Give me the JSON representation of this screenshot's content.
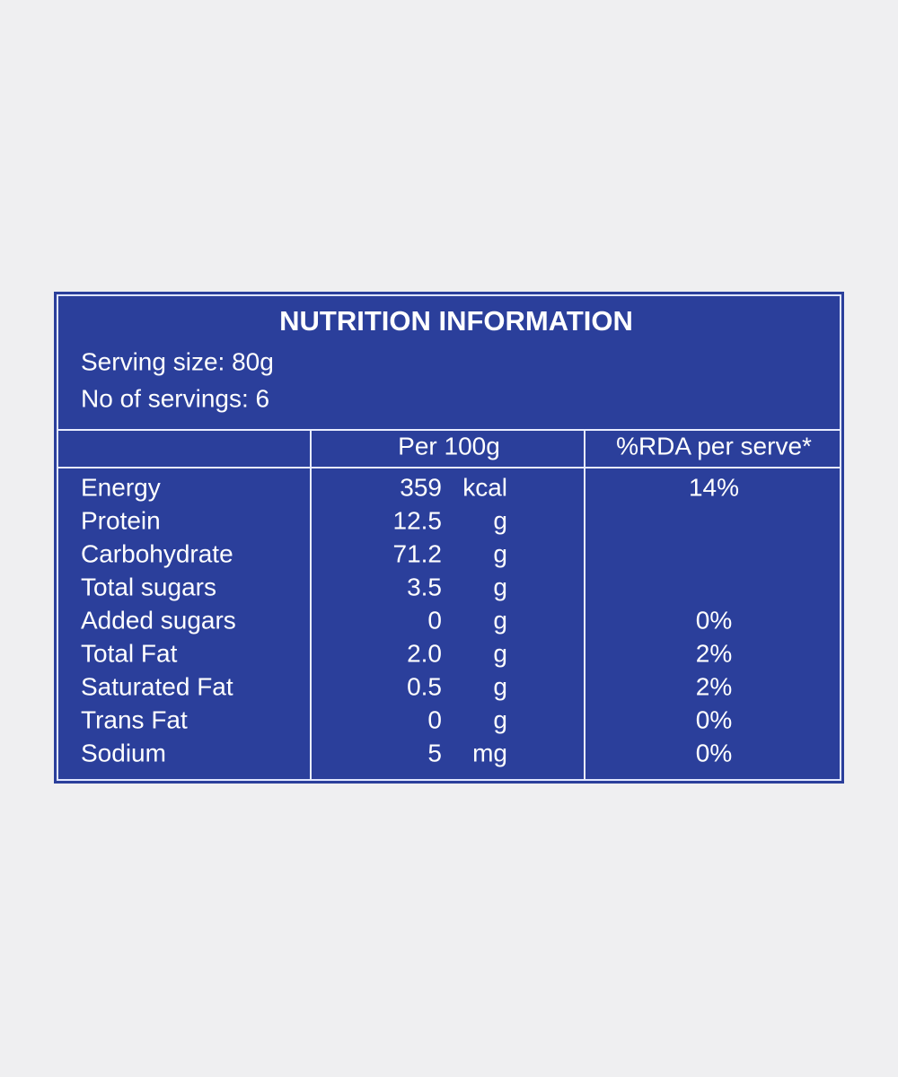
{
  "title": "NUTRITION INFORMATION",
  "serving_size": "Serving size: 80g",
  "servings": "No of servings: 6",
  "table": {
    "headers": [
      "Per 100g",
      "%RDA per serve*"
    ],
    "rows": [
      {
        "name": "Energy",
        "amount": "359",
        "unit": "kcal",
        "rda": "14%"
      },
      {
        "name": "Protein",
        "amount": "12.5",
        "unit": "g"
      },
      {
        "name": "Carbohydrate",
        "amount": "71.2",
        "unit": "g"
      },
      {
        "name": "Total sugars",
        "amount": "3.5",
        "unit": "g"
      },
      {
        "name": "Added sugars",
        "amount": "0",
        "unit": "g",
        "rda": "0%"
      },
      {
        "name": "Total Fat",
        "amount": "2.0",
        "unit": "g",
        "rda": "2%"
      },
      {
        "name": "Saturated Fat",
        "amount": "0.5",
        "unit": "g",
        "rda": "2%"
      },
      {
        "name": "Trans Fat",
        "amount": "0",
        "unit": "g",
        "rda": "0%"
      },
      {
        "name": "Sodium",
        "amount": "5",
        "unit": "mg",
        "rda": "0%"
      }
    ]
  }
}
